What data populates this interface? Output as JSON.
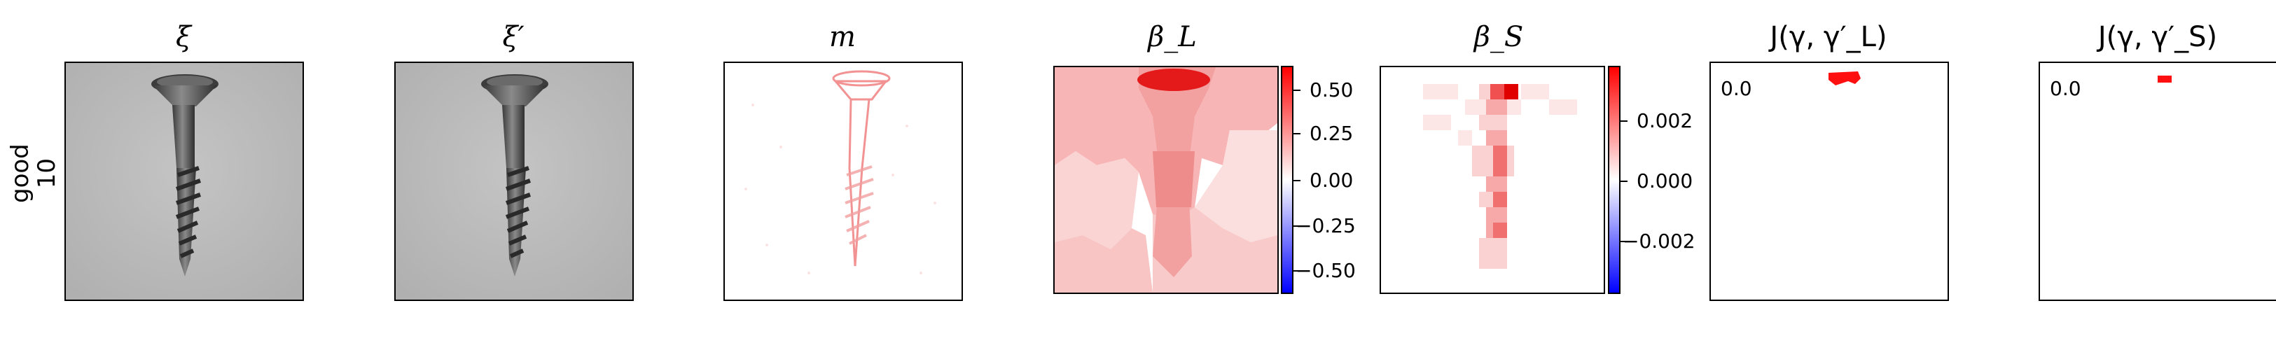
{
  "row_label": {
    "line1": "good",
    "line2": "10"
  },
  "panels": [
    {
      "title": "ξ"
    },
    {
      "title": "ξ′"
    },
    {
      "title": "m"
    },
    {
      "title": "β_L",
      "colorbar_ticks": [
        "0.50",
        "0.25",
        "0.00",
        "−0.25",
        "−0.50"
      ]
    },
    {
      "title": "β_S",
      "colorbar_ticks": [
        "0.002",
        "0.000",
        "−0.002"
      ]
    },
    {
      "title": "J(γ, γ′_L)",
      "value_label": "0.0"
    },
    {
      "title": "J(γ, γ′_S)",
      "value_label": "0.0"
    }
  ],
  "colors": {
    "neg": "#0000ff",
    "zero": "#ffffff",
    "pos": "#ff0000",
    "gray_bg": "#bdbdbd"
  }
}
